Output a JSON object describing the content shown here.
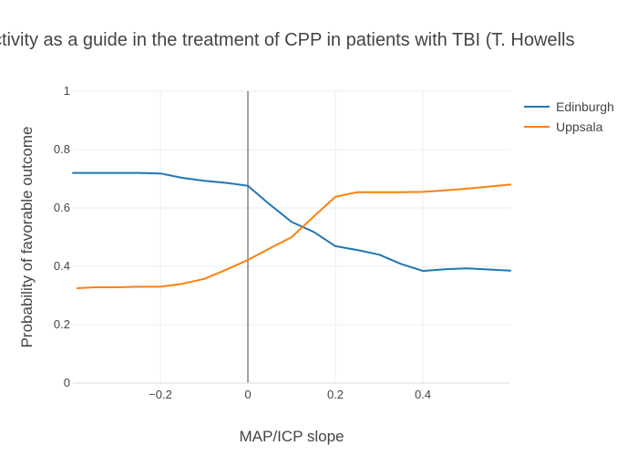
{
  "chart_data": {
    "type": "line",
    "title": "ctivity as a guide in the treatment of CPP in patients with TBI (T. Howells",
    "xlabel": "MAP/ICP slope",
    "ylabel": "Probability of favorable outcome",
    "xlim": [
      -0.4,
      0.6
    ],
    "ylim": [
      0,
      1
    ],
    "x_ticks": [
      {
        "value": -0.2,
        "label": "−0.2"
      },
      {
        "value": 0,
        "label": "0"
      },
      {
        "value": 0.2,
        "label": "0.2"
      },
      {
        "value": 0.4,
        "label": "0.4"
      }
    ],
    "y_ticks": [
      {
        "value": 0,
        "label": "0"
      },
      {
        "value": 0.2,
        "label": "0.2"
      },
      {
        "value": 0.4,
        "label": "0.4"
      },
      {
        "value": 0.6,
        "label": "0.6"
      },
      {
        "value": 0.8,
        "label": "0.8"
      },
      {
        "value": 1,
        "label": "1"
      }
    ],
    "grid": true,
    "vertical_line_x": 0,
    "legend_position": "top-right",
    "series": [
      {
        "name": "Edinburgh",
        "color": "#1f77b4",
        "x": [
          -0.4,
          -0.35,
          -0.3,
          -0.25,
          -0.2,
          -0.15,
          -0.1,
          -0.05,
          0,
          0.05,
          0.1,
          0.15,
          0.2,
          0.25,
          0.3,
          0.35,
          0.4,
          0.45,
          0.5,
          0.55,
          0.6
        ],
        "y": [
          0.72,
          0.72,
          0.72,
          0.72,
          0.718,
          0.703,
          0.693,
          0.686,
          0.676,
          0.612,
          0.552,
          0.518,
          0.469,
          0.456,
          0.44,
          0.408,
          0.384,
          0.39,
          0.393,
          0.389,
          0.385
        ]
      },
      {
        "name": "Uppsala",
        "color": "#ff7f0e",
        "x": [
          -0.39,
          -0.35,
          -0.3,
          -0.25,
          -0.2,
          -0.15,
          -0.1,
          -0.05,
          0,
          0.05,
          0.1,
          0.15,
          0.2,
          0.25,
          0.3,
          0.35,
          0.4,
          0.45,
          0.5,
          0.55,
          0.6
        ],
        "y": [
          0.325,
          0.328,
          0.328,
          0.33,
          0.33,
          0.34,
          0.357,
          0.388,
          0.422,
          0.462,
          0.5,
          0.57,
          0.638,
          0.654,
          0.654,
          0.654,
          0.655,
          0.66,
          0.666,
          0.673,
          0.68
        ]
      }
    ]
  }
}
